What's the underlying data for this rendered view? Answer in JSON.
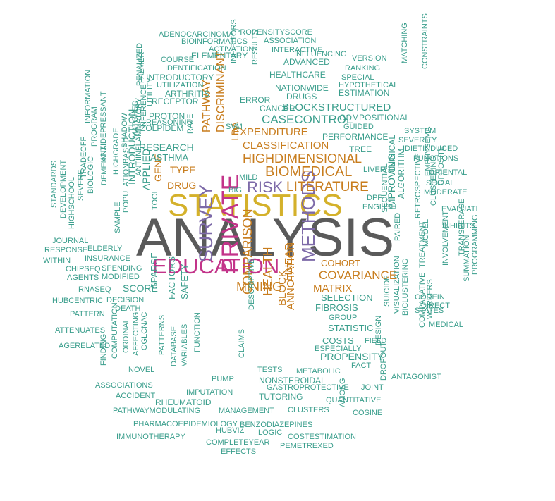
{
  "palette": {
    "teal": "#3a9e8c",
    "gray": "#5a5a5a",
    "gold": "#d4b12b",
    "magenta": "#c3348a",
    "purple": "#7d6aa8",
    "orange": "#c87d1e"
  },
  "words": [
    {
      "text": "ANALYSIS",
      "color": "gray"
    },
    {
      "text": "STATISTICS",
      "color": "gold"
    },
    {
      "text": "EDUCATION",
      "color": "magenta"
    },
    {
      "text": "PRIVATE",
      "color": "magenta"
    },
    {
      "text": "SURVEY",
      "color": "purple"
    },
    {
      "text": "METHODS",
      "color": "purple"
    },
    {
      "text": "RISK",
      "color": "purple"
    },
    {
      "text": "LITERATURE",
      "color": "orange"
    },
    {
      "text": "BIOMEDICAL",
      "color": "orange"
    },
    {
      "text": "HIGHDIMENSIONAL",
      "color": "orange"
    },
    {
      "text": "COVARIANCE",
      "color": "orange"
    },
    {
      "text": "MATRIX",
      "color": "orange"
    },
    {
      "text": "MINING",
      "color": "orange"
    },
    {
      "text": "HEALTH",
      "color": "orange"
    },
    {
      "text": "COMPARISON",
      "color": "orange"
    },
    {
      "text": "DISCRIMINANT",
      "color": "orange"
    },
    {
      "text": "PATHWAY",
      "color": "orange"
    },
    {
      "text": "LDA",
      "color": "orange"
    },
    {
      "text": "EXPENDITURE",
      "color": "orange"
    },
    {
      "text": "CLASSIFICATION",
      "color": "orange"
    },
    {
      "text": "BLOCK",
      "color": "orange"
    },
    {
      "text": "ANNOTATION",
      "color": "orange"
    },
    {
      "text": "LINEAR",
      "color": "orange"
    },
    {
      "text": "COHORT",
      "color": "orange"
    },
    {
      "text": "TYPE",
      "color": "orange"
    },
    {
      "text": "DRUG",
      "color": "orange"
    },
    {
      "text": "GENE",
      "color": "orange"
    },
    {
      "text": "CASECONTROL",
      "color": "teal"
    },
    {
      "text": "BLOCKSTRUCTURED",
      "color": "teal"
    },
    {
      "text": "PROPENSITY",
      "color": "teal"
    },
    {
      "text": "COSTS",
      "color": "teal"
    },
    {
      "text": "STATISTIC",
      "color": "teal"
    },
    {
      "text": "FIBROSIS",
      "color": "teal"
    },
    {
      "text": "SELECTION",
      "color": "teal"
    },
    {
      "text": "RESEARCH",
      "color": "teal"
    },
    {
      "text": "ASTHMA",
      "color": "teal"
    },
    {
      "text": "SCORE",
      "color": "teal"
    },
    {
      "text": "FACTORS",
      "color": "teal"
    },
    {
      "text": "SAFETY",
      "color": "teal"
    },
    {
      "text": "SPARSE",
      "color": "teal"
    },
    {
      "text": "INTRODUCTION",
      "color": "teal"
    },
    {
      "text": "APPLIED",
      "color": "teal"
    },
    {
      "text": "IMPROVING",
      "color": "teal"
    },
    {
      "text": "ALGORITHM",
      "color": "teal"
    },
    {
      "text": "RHEUMATOID",
      "color": "teal"
    },
    {
      "text": "ELDERLY",
      "color": "teal"
    },
    {
      "text": "INSURANCE",
      "color": "teal"
    },
    {
      "text": "SPENDING",
      "color": "teal"
    },
    {
      "text": "MODIFIED",
      "color": "teal"
    },
    {
      "text": "DECISION",
      "color": "teal"
    },
    {
      "text": "DEATH",
      "color": "teal"
    },
    {
      "text": "TUTORING",
      "color": "teal"
    },
    {
      "text": "NONSTEROIDAL",
      "color": "teal"
    },
    {
      "text": "GASTROPROTECTIVE",
      "color": "teal"
    },
    {
      "text": "IMPUTATION",
      "color": "teal"
    },
    {
      "text": "MANAGEMENT",
      "color": "teal"
    },
    {
      "text": "CLUSTERS",
      "color": "teal"
    },
    {
      "text": "METABOLIC",
      "color": "teal"
    },
    {
      "text": "TESTS",
      "color": "teal"
    },
    {
      "text": "PUMP",
      "color": "teal"
    },
    {
      "text": "ELEMENTARY",
      "color": "teal"
    },
    {
      "text": "INTRODUCTORY",
      "color": "teal"
    },
    {
      "text": "ARTHRITIS",
      "color": "teal"
    },
    {
      "text": "RECEPTOR",
      "color": "teal"
    },
    {
      "text": "PROTON",
      "color": "teal"
    },
    {
      "text": "ZOLPIDEM",
      "color": "teal"
    },
    {
      "text": "DRUGS",
      "color": "teal"
    },
    {
      "text": "CANCER",
      "color": "teal"
    },
    {
      "text": "ERROR",
      "color": "teal"
    },
    {
      "text": "NATIONWIDE",
      "color": "teal"
    },
    {
      "text": "HEALTHCARE",
      "color": "teal"
    },
    {
      "text": "ADVANCED",
      "color": "teal"
    },
    {
      "text": "ESTIMATION",
      "color": "teal"
    },
    {
      "text": "COMPOSITIONAL",
      "color": "teal"
    },
    {
      "text": "GUIDED",
      "color": "teal"
    },
    {
      "text": "PERFORMANCE",
      "color": "teal"
    },
    {
      "text": "TREE",
      "color": "teal"
    },
    {
      "text": "LIVER",
      "color": "teal"
    },
    {
      "text": "CLINICAL",
      "color": "teal"
    },
    {
      "text": "MILD",
      "color": "teal"
    },
    {
      "text": "BIG",
      "color": "teal"
    },
    {
      "text": "SVM",
      "color": "teal"
    },
    {
      "text": "INHIBITORS",
      "color": "teal"
    },
    {
      "text": "RATE",
      "color": "teal"
    },
    {
      "text": "UTILITY",
      "color": "teal"
    },
    {
      "text": "ADENOCARCINOMA",
      "color": "teal"
    },
    {
      "text": "PROPENSITYSCORE",
      "color": "teal"
    },
    {
      "text": "BIOINFORMATICS",
      "color": "teal"
    },
    {
      "text": "ASSOCIATION",
      "color": "teal"
    },
    {
      "text": "ACTIVATION",
      "color": "teal"
    },
    {
      "text": "INTERACTIVE",
      "color": "teal"
    },
    {
      "text": "INFLUENCING",
      "color": "teal"
    },
    {
      "text": "VERSION",
      "color": "teal"
    },
    {
      "text": "COURSE",
      "color": "teal"
    },
    {
      "text": "IDENTIFICATION",
      "color": "teal"
    },
    {
      "text": "RANKING",
      "color": "teal"
    },
    {
      "text": "SPECIAL",
      "color": "teal"
    },
    {
      "text": "HYPOTHETICAL",
      "color": "teal"
    },
    {
      "text": "UTILIZATION",
      "color": "teal"
    },
    {
      "text": "MATCHING",
      "color": "teal"
    },
    {
      "text": "CONSTRAINTS",
      "color": "teal"
    },
    {
      "text": "SYSTEM",
      "color": "teal"
    },
    {
      "text": "SEVERITY",
      "color": "teal"
    },
    {
      "text": "IDIETINDUCED",
      "color": "teal"
    },
    {
      "text": "FUNCTIONS",
      "color": "teal"
    },
    {
      "text": "ORIENTAL",
      "color": "teal"
    },
    {
      "text": "SOCIAL",
      "color": "teal"
    },
    {
      "text": "MODERATE",
      "color": "teal"
    },
    {
      "text": "EVALUATI",
      "color": "teal"
    },
    {
      "text": "INHIBITS",
      "color": "teal"
    },
    {
      "text": "EMPHYSEMA",
      "color": "teal"
    },
    {
      "text": "OPPOSITE",
      "color": "teal"
    },
    {
      "text": "CLUSTERING",
      "color": "teal"
    },
    {
      "text": "RETROSPECTIVE",
      "color": "teal"
    },
    {
      "text": "MODEL",
      "color": "teal"
    },
    {
      "text": "TREATMENT",
      "color": "teal"
    },
    {
      "text": "TRANSFERASE",
      "color": "teal"
    },
    {
      "text": "INVOLVEMENT",
      "color": "teal"
    },
    {
      "text": "SUMMATION",
      "color": "teal"
    },
    {
      "text": "PROGRAMMING",
      "color": "teal"
    },
    {
      "text": "CODEIN",
      "color": "teal"
    },
    {
      "text": "DIRECT",
      "color": "teal"
    },
    {
      "text": "STATES",
      "color": "teal"
    },
    {
      "text": "MEDICAL",
      "color": "teal"
    },
    {
      "text": "WORKERS",
      "color": "teal"
    },
    {
      "text": "COMPARATIVE",
      "color": "teal"
    },
    {
      "text": "BICLUSTERING",
      "color": "teal"
    },
    {
      "text": "VISUALIZATION",
      "color": "teal"
    },
    {
      "text": "SUICIDE",
      "color": "teal"
    },
    {
      "text": "PAIRED",
      "color": "teal"
    },
    {
      "text": "SEQUENTIAL",
      "color": "teal"
    },
    {
      "text": "DPP",
      "color": "teal"
    },
    {
      "text": "ENGLISH",
      "color": "teal"
    },
    {
      "text": "GROUP",
      "color": "teal"
    },
    {
      "text": "FIELD",
      "color": "teal"
    },
    {
      "text": "ESPECIALLY",
      "color": "teal"
    },
    {
      "text": "FACT",
      "color": "teal"
    },
    {
      "text": "DESIGN",
      "color": "teal"
    },
    {
      "text": "DROPOUT",
      "color": "teal"
    },
    {
      "text": "JOINT",
      "color": "teal"
    },
    {
      "text": "ANTAGONIST",
      "color": "teal"
    },
    {
      "text": "QUANTITATIVE",
      "color": "teal"
    },
    {
      "text": "COSINE",
      "color": "teal"
    },
    {
      "text": "AMONG",
      "color": "teal"
    },
    {
      "text": "BENZODIAZEPINES",
      "color": "teal"
    },
    {
      "text": "LOGIC",
      "color": "teal"
    },
    {
      "text": "HUBVIZ",
      "color": "teal"
    },
    {
      "text": "COSTESTIMATION",
      "color": "teal"
    },
    {
      "text": "PEMETREXED",
      "color": "teal"
    },
    {
      "text": "COMPLETEYEAR",
      "color": "teal"
    },
    {
      "text": "EFFECTS",
      "color": "teal"
    },
    {
      "text": "IMMUNOTHERAPY",
      "color": "teal"
    },
    {
      "text": "PHARMACOEPIDEMIOLOGY",
      "color": "teal"
    },
    {
      "text": "PATHWAYMODULATING",
      "color": "teal"
    },
    {
      "text": "ACCIDENT",
      "color": "teal"
    },
    {
      "text": "ASSOCIATIONS",
      "color": "teal"
    },
    {
      "text": "NOVEL",
      "color": "teal"
    },
    {
      "text": "DATABASE",
      "color": "teal"
    },
    {
      "text": "VARIABLES",
      "color": "teal"
    },
    {
      "text": "FUNCTION",
      "color": "teal"
    },
    {
      "text": "PATTERNS",
      "color": "teal"
    },
    {
      "text": "OGLCNAC",
      "color": "teal"
    },
    {
      "text": "AFFECTING",
      "color": "teal"
    },
    {
      "text": "ORDINAL",
      "color": "teal"
    },
    {
      "text": "COMPUTATION",
      "color": "teal"
    },
    {
      "text": "FINDING",
      "color": "teal"
    },
    {
      "text": "AGERELATED",
      "color": "teal"
    },
    {
      "text": "ATTENUATES",
      "color": "teal"
    },
    {
      "text": "PATTERN",
      "color": "teal"
    },
    {
      "text": "HUBCENTRIC",
      "color": "teal"
    },
    {
      "text": "RNASEQ",
      "color": "teal"
    },
    {
      "text": "AGENTS",
      "color": "teal"
    },
    {
      "text": "CHIPSEQ",
      "color": "teal"
    },
    {
      "text": "WITHIN",
      "color": "teal"
    },
    {
      "text": "RESPONSE",
      "color": "teal"
    },
    {
      "text": "JOURNAL",
      "color": "teal"
    },
    {
      "text": "HIGHSCHOOL",
      "color": "teal"
    },
    {
      "text": "DEVELOPMENT",
      "color": "teal"
    },
    {
      "text": "STANDARDS",
      "color": "teal"
    },
    {
      "text": "SEVERE",
      "color": "teal"
    },
    {
      "text": "BIOLOGIC",
      "color": "teal"
    },
    {
      "text": "DEMENTIA",
      "color": "teal"
    },
    {
      "text": "TRADEOFF",
      "color": "teal"
    },
    {
      "text": "ANTIDEPRESSANT",
      "color": "teal"
    },
    {
      "text": "PROGRAM",
      "color": "teal"
    },
    {
      "text": "INFORMATION",
      "color": "teal"
    },
    {
      "text": "SAMPLE",
      "color": "teal"
    },
    {
      "text": "POPULATIONBASED",
      "color": "teal"
    },
    {
      "text": "ANTIINFLAMMATORY",
      "color": "teal"
    },
    {
      "text": "HIGHGRADE",
      "color": "teal"
    },
    {
      "text": "SHADOW",
      "color": "teal"
    },
    {
      "text": "MATCHED",
      "color": "teal"
    },
    {
      "text": "INFERENCE",
      "color": "teal"
    },
    {
      "text": "PENALIZED",
      "color": "teal"
    },
    {
      "text": "PALMER",
      "color": "teal"
    },
    {
      "text": "REASONING",
      "color": "teal"
    },
    {
      "text": "TOOL",
      "color": "teal"
    },
    {
      "text": "DESCRIPTIVE",
      "color": "teal"
    },
    {
      "text": "CLAIMS",
      "color": "teal"
    },
    {
      "text": "RESULTS",
      "color": "teal"
    }
  ]
}
